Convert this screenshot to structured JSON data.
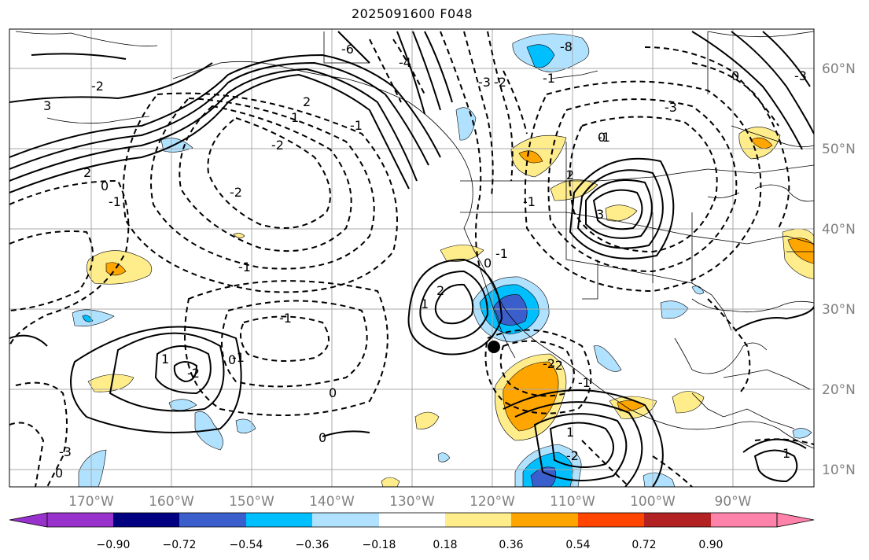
{
  "title": "2025091600 F048",
  "lon_labels": [
    "170°W",
    "160°W",
    "150°W",
    "140°W",
    "130°W",
    "120°W",
    "110°W",
    "100°W",
    "90°W"
  ],
  "lat_labels": [
    "60°N",
    "50°N",
    "40°N",
    "30°N",
    "20°N",
    "10°N"
  ],
  "colorbar": {
    "ticks": [
      "−0.90",
      "−0.72",
      "−0.54",
      "−0.36",
      "−0.18",
      "0.18",
      "0.36",
      "0.54",
      "0.72",
      "0.90"
    ],
    "colors": [
      "#9932cc",
      "#000080",
      "#3a5fcd",
      "#00bfff",
      "#b0e2ff",
      "#ffffff",
      "#ffec8b",
      "#ffa500",
      "#ff4500",
      "#b22222",
      "#ff82ab"
    ]
  },
  "contour_labels": [
    "-2",
    "3",
    "-6",
    "-4",
    "-8",
    "0",
    "-3",
    "1",
    "2",
    "-1",
    "0",
    "2",
    "-2",
    "-1",
    "-2",
    "-1",
    "0",
    "1",
    "2",
    "1",
    "-2",
    "-1",
    "2",
    "3",
    "-1",
    "-3",
    "0",
    "-2",
    "-1",
    "0",
    "0",
    "1",
    "-3",
    "-2",
    "-1",
    "0",
    "-2",
    "-1",
    "0",
    "1",
    "-1",
    "-3",
    "-2",
    "-1"
  ],
  "marker": "storm-position"
}
